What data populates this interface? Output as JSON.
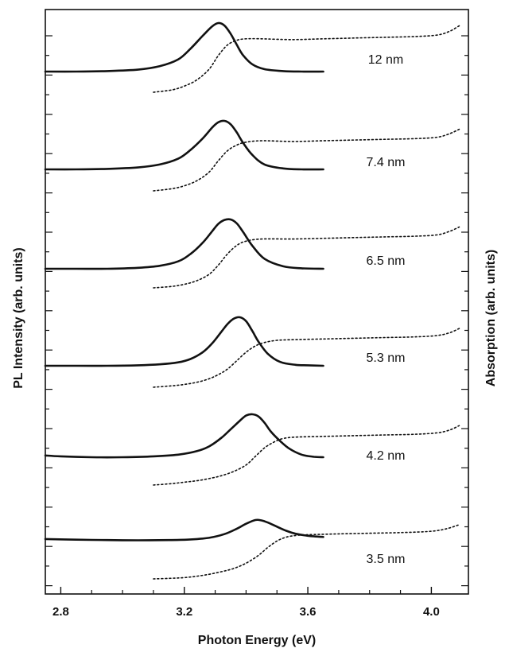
{
  "chart_data": {
    "type": "line",
    "xlabel": "Photon Energy (eV)",
    "ylabel_left": "PL Intensity (arb. units)",
    "ylabel_right": "Absorption (arb. units)",
    "xlim": [
      2.75,
      4.12
    ],
    "x_ticks": [
      2.8,
      3.2,
      3.6,
      4.0
    ],
    "x_tick_labels": [
      "2.8",
      "3.2",
      "3.6",
      "4.0"
    ],
    "grid": false,
    "curves": [
      {
        "label": "12 nm",
        "pl": {
          "x": [
            2.75,
            2.85,
            2.95,
            3.05,
            3.12,
            3.18,
            3.22,
            3.26,
            3.29,
            3.31,
            3.33,
            3.35,
            3.37,
            3.39,
            3.42,
            3.46,
            3.52,
            3.58,
            3.65
          ],
          "y": [
            0.0,
            0.0,
            0.01,
            0.04,
            0.11,
            0.25,
            0.47,
            0.74,
            0.93,
            1.0,
            0.95,
            0.78,
            0.55,
            0.34,
            0.15,
            0.05,
            0.01,
            0.0,
            0.0
          ]
        },
        "abs": {
          "x": [
            3.1,
            3.16,
            3.2,
            3.24,
            3.28,
            3.31,
            3.34,
            3.37,
            3.4,
            3.45,
            3.55,
            3.65,
            3.75,
            3.85,
            3.95,
            4.02,
            4.06,
            4.09
          ],
          "y": [
            0.0,
            0.03,
            0.08,
            0.16,
            0.3,
            0.48,
            0.62,
            0.68,
            0.7,
            0.7,
            0.69,
            0.7,
            0.71,
            0.72,
            0.73,
            0.75,
            0.8,
            0.87
          ]
        }
      },
      {
        "label": "7.4 nm",
        "pl": {
          "x": [
            2.75,
            2.85,
            2.95,
            3.05,
            3.12,
            3.18,
            3.22,
            3.26,
            3.29,
            3.31,
            3.33,
            3.35,
            3.37,
            3.39,
            3.42,
            3.46,
            3.52,
            3.58,
            3.65
          ],
          "y": [
            0.0,
            0.0,
            0.01,
            0.04,
            0.1,
            0.22,
            0.4,
            0.64,
            0.86,
            0.97,
            1.0,
            0.93,
            0.76,
            0.55,
            0.3,
            0.1,
            0.02,
            0.0,
            0.0
          ]
        },
        "abs": {
          "x": [
            3.1,
            3.16,
            3.2,
            3.24,
            3.28,
            3.31,
            3.34,
            3.37,
            3.4,
            3.45,
            3.55,
            3.65,
            3.75,
            3.85,
            3.95,
            4.02,
            4.06,
            4.09
          ],
          "y": [
            0.0,
            0.03,
            0.07,
            0.14,
            0.26,
            0.42,
            0.56,
            0.64,
            0.68,
            0.7,
            0.69,
            0.7,
            0.71,
            0.72,
            0.73,
            0.75,
            0.8,
            0.86
          ]
        }
      },
      {
        "label": "6.5 nm",
        "pl": {
          "x": [
            2.75,
            2.85,
            2.95,
            3.05,
            3.12,
            3.18,
            3.22,
            3.26,
            3.29,
            3.31,
            3.33,
            3.35,
            3.37,
            3.39,
            3.42,
            3.46,
            3.52,
            3.58,
            3.65
          ],
          "y": [
            0.0,
            0.0,
            0.0,
            0.02,
            0.06,
            0.15,
            0.3,
            0.53,
            0.76,
            0.91,
            0.99,
            1.0,
            0.92,
            0.75,
            0.47,
            0.2,
            0.05,
            0.01,
            0.0
          ]
        },
        "abs": {
          "x": [
            3.1,
            3.16,
            3.2,
            3.24,
            3.28,
            3.31,
            3.34,
            3.37,
            3.4,
            3.45,
            3.55,
            3.65,
            3.75,
            3.85,
            3.95,
            4.02,
            4.06,
            4.09
          ],
          "y": [
            0.0,
            0.02,
            0.05,
            0.1,
            0.19,
            0.32,
            0.48,
            0.6,
            0.66,
            0.69,
            0.69,
            0.7,
            0.71,
            0.72,
            0.73,
            0.75,
            0.8,
            0.86
          ]
        }
      },
      {
        "label": "5.3 nm",
        "pl": {
          "x": [
            2.75,
            2.85,
            2.95,
            3.05,
            3.12,
            3.18,
            3.22,
            3.26,
            3.29,
            3.32,
            3.34,
            3.36,
            3.38,
            3.4,
            3.42,
            3.44,
            3.47,
            3.51,
            3.56,
            3.6,
            3.65
          ],
          "y": [
            0.0,
            0.0,
            0.0,
            0.01,
            0.03,
            0.07,
            0.14,
            0.28,
            0.46,
            0.7,
            0.86,
            0.97,
            1.0,
            0.92,
            0.72,
            0.5,
            0.25,
            0.08,
            0.02,
            0.01,
            0.0
          ]
        },
        "abs": {
          "x": [
            3.1,
            3.16,
            3.2,
            3.24,
            3.28,
            3.31,
            3.34,
            3.37,
            3.4,
            3.43,
            3.46,
            3.5,
            3.55,
            3.65,
            3.75,
            3.85,
            3.95,
            4.02,
            4.06,
            4.09
          ],
          "y": [
            0.0,
            0.02,
            0.04,
            0.07,
            0.12,
            0.18,
            0.26,
            0.38,
            0.5,
            0.59,
            0.64,
            0.67,
            0.68,
            0.69,
            0.7,
            0.71,
            0.72,
            0.74,
            0.78,
            0.84
          ]
        }
      },
      {
        "label": "4.2 nm",
        "pl": {
          "x": [
            2.75,
            2.8,
            2.9,
            3.0,
            3.1,
            3.18,
            3.24,
            3.28,
            3.32,
            3.35,
            3.38,
            3.4,
            3.42,
            3.44,
            3.46,
            3.48,
            3.51,
            3.54,
            3.58,
            3.62,
            3.65
          ],
          "y": [
            0.04,
            0.02,
            0.0,
            0.0,
            0.02,
            0.06,
            0.14,
            0.25,
            0.45,
            0.65,
            0.85,
            0.97,
            1.0,
            0.95,
            0.8,
            0.6,
            0.38,
            0.2,
            0.06,
            0.01,
            0.0
          ]
        },
        "abs": {
          "x": [
            3.1,
            3.16,
            3.2,
            3.24,
            3.28,
            3.32,
            3.36,
            3.4,
            3.43,
            3.46,
            3.49,
            3.52,
            3.56,
            3.65,
            3.75,
            3.85,
            3.95,
            4.02,
            4.06,
            4.09
          ],
          "y": [
            0.0,
            0.02,
            0.04,
            0.06,
            0.09,
            0.13,
            0.19,
            0.28,
            0.4,
            0.52,
            0.6,
            0.65,
            0.67,
            0.68,
            0.69,
            0.7,
            0.71,
            0.73,
            0.77,
            0.83
          ]
        }
      },
      {
        "label": "3.5 nm",
        "pl": {
          "x": [
            2.75,
            2.85,
            2.95,
            3.05,
            3.15,
            3.22,
            3.28,
            3.33,
            3.37,
            3.4,
            3.43,
            3.45,
            3.47,
            3.5,
            3.53,
            3.56,
            3.6,
            3.65
          ],
          "y": [
            0.08,
            0.05,
            0.03,
            0.02,
            0.03,
            0.06,
            0.14,
            0.32,
            0.58,
            0.82,
            1.0,
            0.98,
            0.88,
            0.68,
            0.48,
            0.34,
            0.24,
            0.18
          ]
        },
        "abs": {
          "x": [
            3.1,
            3.16,
            3.2,
            3.24,
            3.28,
            3.32,
            3.36,
            3.4,
            3.44,
            3.47,
            3.5,
            3.53,
            3.57,
            3.62,
            3.7,
            3.8,
            3.9,
            4.0,
            4.05,
            4.09
          ],
          "y": [
            0.0,
            0.01,
            0.02,
            0.04,
            0.07,
            0.11,
            0.16,
            0.24,
            0.36,
            0.48,
            0.58,
            0.64,
            0.67,
            0.68,
            0.69,
            0.7,
            0.71,
            0.73,
            0.77,
            0.83
          ]
        }
      }
    ]
  }
}
